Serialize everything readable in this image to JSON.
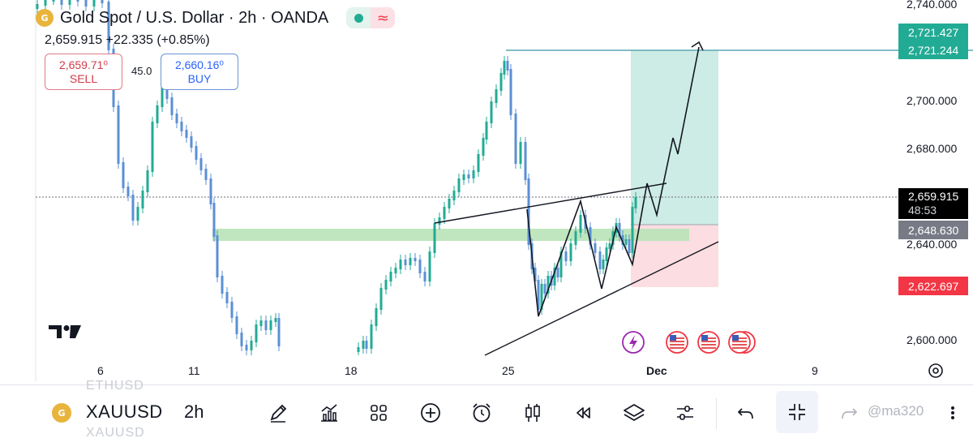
{
  "header": {
    "symbol_badge": "G",
    "title": "Gold Spot / U.S. Dollar · 2h · OANDA",
    "wave_icon": "≈",
    "quote": "2,659.915  +22.335 (+0.85%)"
  },
  "trade": {
    "sell_price": "2,659.71⁰",
    "sell_label": "SELL",
    "spread": "45.0",
    "buy_price": "2,660.16⁰",
    "buy_label": "BUY"
  },
  "price_axis": {
    "ticks": [
      "2,740.000",
      "2,700.000",
      "2,680.000",
      "2,640.000",
      "2,600.000"
    ],
    "target_tag_1": "2,721.427",
    "target_tag_2": "2,721.244",
    "last_price": "2,659.915",
    "countdown": "48:53",
    "entry_tag": "2,648.630",
    "stop_tag": "2,622.697"
  },
  "time_axis": {
    "ticks": [
      "6",
      "11",
      "18",
      "25",
      "Dec",
      "9"
    ]
  },
  "colors": {
    "up": "#22ab94",
    "down": "#5b8fd6",
    "target_zone": "#cdece5",
    "stop_zone": "#fbdde2",
    "support_zone": "#b9e3b8",
    "stop_tag": "#f23645",
    "entry_tag": "#787b86",
    "target_tag": "#22ab94"
  },
  "toolbar": {
    "ghost_above": "ETHUSD",
    "symbol_badge": "G",
    "symbol": "XAUUSD",
    "timeframe": "2h",
    "ghost_below": "XAUUSD",
    "icons": [
      "pen-icon",
      "indicators-icon",
      "grid-icon",
      "plus-circle-icon",
      "alarm-icon",
      "candles-icon",
      "rewind-icon",
      "layers-icon",
      "sliders-icon",
      "undo-icon",
      "compress-icon",
      "redo-icon"
    ],
    "watermark": "@ma320"
  }
}
